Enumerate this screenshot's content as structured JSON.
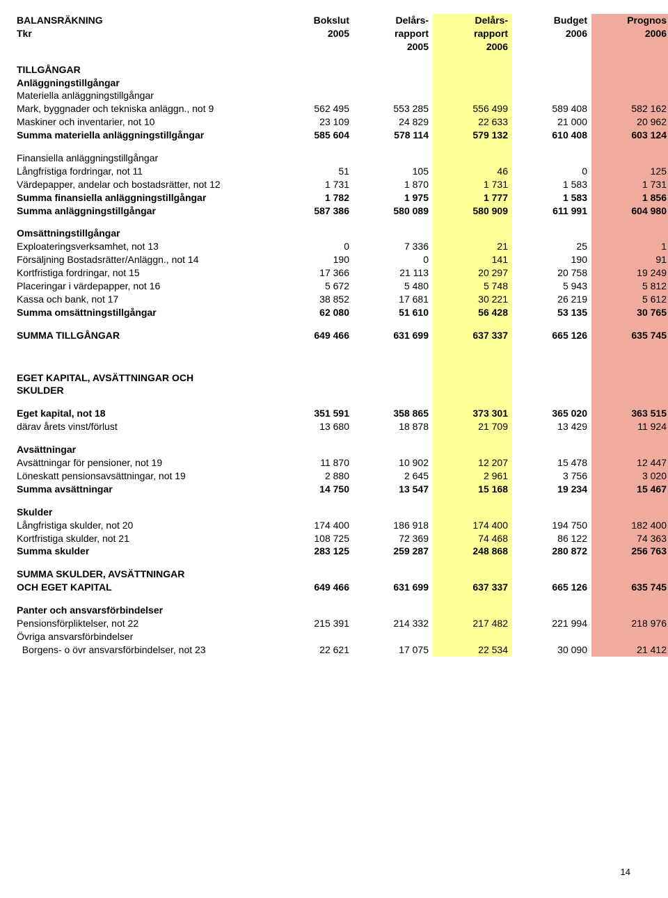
{
  "header": {
    "title_line1": "BALANSRÄKNING",
    "title_line2": "Tkr",
    "c1l1": "Bokslut",
    "c1l2": "2005",
    "c2l1": "Delårs-",
    "c2l2": "rapport",
    "c2l3": "2005",
    "c3l1": "Delårs-",
    "c3l2": "rapport",
    "c3l3": "2006",
    "c4l1": "Budget",
    "c4l2": "2006",
    "c5l1": "Prognos",
    "c5l2": "2006"
  },
  "tillg": "TILLGÅNGAR",
  "anl": "Anläggningstillgångar",
  "mat": "Materiella anläggningstillgångar",
  "r9": {
    "l": "Mark, byggnader och tekniska anläggn., not 9",
    "v": [
      "562 495",
      "553 285",
      "556 499",
      "589 408",
      "582 162"
    ]
  },
  "r10": {
    "l": "Maskiner och inventarier, not 10",
    "v": [
      "23 109",
      "24 829",
      "22 633",
      "21 000",
      "20 962"
    ]
  },
  "smat": {
    "l": "Summa materiella anläggningstillgångar",
    "v": [
      "585 604",
      "578 114",
      "579 132",
      "610 408",
      "603 124"
    ]
  },
  "fanl": "Finansiella anläggningstillgångar",
  "r11": {
    "l": "Långfristiga fordringar, not 11",
    "v": [
      "51",
      "105",
      "46",
      "0",
      "125"
    ]
  },
  "r12": {
    "l": "Värdepapper, andelar och bostadsrätter, not 12",
    "v": [
      "1 731",
      "1 870",
      "1 731",
      "1 583",
      "1 731"
    ]
  },
  "sfin": {
    "l": "Summa finansiella anläggningstillgångar",
    "v": [
      "1 782",
      "1 975",
      "1 777",
      "1 583",
      "1 856"
    ]
  },
  "sanl": {
    "l": "Summa anläggningstillgångar",
    "v": [
      "587 386",
      "580 089",
      "580 909",
      "611 991",
      "604 980"
    ]
  },
  "oms": "Omsättningstillgångar",
  "r13": {
    "l": "Exploateringsverksamhet, not 13",
    "v": [
      "0",
      "7 336",
      "21",
      "25",
      "1"
    ]
  },
  "r14": {
    "l": "Försäljning Bostadsrätter/Anläggn., not 14",
    "v": [
      "190",
      "0",
      "141",
      "190",
      "91"
    ]
  },
  "r15": {
    "l": "Kortfristiga fordringar, not 15",
    "v": [
      "17 366",
      "21 113",
      "20 297",
      "20 758",
      "19 249"
    ]
  },
  "r16": {
    "l": "Placeringar i värdepapper, not 16",
    "v": [
      "5 672",
      "5 480",
      "5 748",
      "5 943",
      "5 812"
    ]
  },
  "r17": {
    "l": "Kassa och bank, not 17",
    "v": [
      "38 852",
      "17 681",
      "30 221",
      "26 219",
      "5 612"
    ]
  },
  "soms": {
    "l": "Summa omsättningstillgångar",
    "v": [
      "62 080",
      "51 610",
      "56 428",
      "53 135",
      "30 765"
    ]
  },
  "stillg": {
    "l": "SUMMA TILLGÅNGAR",
    "v": [
      "649 466",
      "631 699",
      "637 337",
      "665 126",
      "635 745"
    ]
  },
  "ek1": "EGET KAPITAL, AVSÄTTNINGAR OCH",
  "ek2": "SKULDER",
  "r18": {
    "l": "Eget kapital, not 18",
    "v": [
      "351 591",
      "358 865",
      "373 301",
      "365 020",
      "363 515"
    ]
  },
  "r18b": {
    "l": "därav årets vinst/förlust",
    "v": [
      "13 680",
      "18 878",
      "21 709",
      "13 429",
      "11 924"
    ]
  },
  "avs": "Avsättningar",
  "r19": {
    "l": "Avsättningar för pensioner, not 19",
    "v": [
      "11 870",
      "10 902",
      "12 207",
      "15 478",
      "12 447"
    ]
  },
  "r19b": {
    "l": "Löneskatt pensionsavsättningar, not 19",
    "v": [
      "2 880",
      "2 645",
      "2 961",
      "3 756",
      "3 020"
    ]
  },
  "savs": {
    "l": "Summa avsättningar",
    "v": [
      "14 750",
      "13 547",
      "15 168",
      "19 234",
      "15 467"
    ]
  },
  "sk": "Skulder",
  "r20": {
    "l": "Långfristiga skulder, not 20",
    "v": [
      "174 400",
      "186 918",
      "174 400",
      "194 750",
      "182 400"
    ]
  },
  "r21": {
    "l": "Kortfristiga skulder, not 21",
    "v": [
      "108 725",
      "72 369",
      "74 468",
      "86 122",
      "74 363"
    ]
  },
  "ssk": {
    "l": "Summa skulder",
    "v": [
      "283 125",
      "259 287",
      "248 868",
      "280 872",
      "256 763"
    ]
  },
  "ssae1": "SUMMA SKULDER, AVSÄTTNINGAR",
  "ssae2": {
    "l": "OCH EGET KAPITAL",
    "v": [
      "649 466",
      "631 699",
      "637 337",
      "665 126",
      "635 745"
    ]
  },
  "pa": "Panter och ansvarsförbindelser",
  "r22": {
    "l": "Pensionsförpliktelser, not 22",
    "v": [
      "215 391",
      "214 332",
      "217 482",
      "221 994",
      "218 976"
    ]
  },
  "oaf": "Övriga ansvarsförbindelser",
  "r23": {
    "l": "  Borgens- o övr ansvarsförbindelser, not 23",
    "v": [
      "22 621",
      "17 075",
      "22 534",
      "30 090",
      "21 412"
    ]
  },
  "page": "14"
}
